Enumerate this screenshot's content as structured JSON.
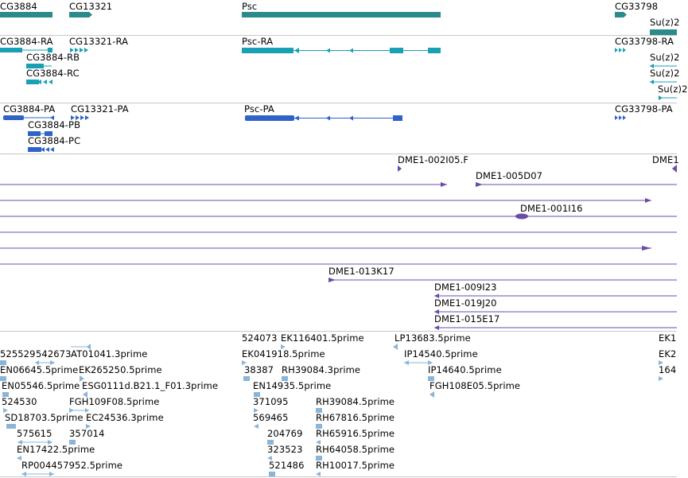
{
  "colors": {
    "gene": "#2b8a8a",
    "transcript": "#1aa0b4",
    "protein": "#2f63c8",
    "clone": "#6a4ca8",
    "est": "#8ab4d8",
    "divider": "#c8c8c8"
  },
  "tracks": {
    "genes": {
      "labels": [
        "CG3884",
        "CG13321",
        "Psc",
        "CG33798",
        "Su(z)2"
      ]
    },
    "transcripts": {
      "labels": [
        "CG3884-RA",
        "CG13321-RA",
        "CG3884-RB",
        "CG3884-RC",
        "Psc-RA",
        "CG33798-RA",
        "Su(z)2",
        "Su(z)2",
        "Su(z)2"
      ]
    },
    "proteins": {
      "labels": [
        "CG3884-PA",
        "CG13321-PA",
        "CG3884-PB",
        "CG3884-PC",
        "Psc-PA",
        "CG33798-PA"
      ]
    },
    "clones": {
      "labels": [
        "DME1-002I05.F",
        "DME1",
        "DME1-005D07",
        "DME1-001I16",
        "DME1-013K17",
        "DME1-009I23",
        "DME1-019J20",
        "DME1-015E17"
      ]
    },
    "ests": {
      "labels": [
        "525529",
        "542673",
        "AT01041.3prime",
        "EN06645.5prime",
        "EK265250.5prime",
        "EN05546.5prime",
        "ESG0111d.B21.1_F01.3prime",
        "524530",
        "FGH109F08.5prime",
        "SD18703.5prime",
        "EC24536.3prime",
        "575615",
        "357014",
        "EN17422.5prime",
        "RP004457952.5prime",
        "524073",
        "EK116401.5prime",
        "EK041918.5prime",
        "38387",
        "RH39084.3prime",
        "EN14935.5prime",
        "371095",
        "RH39084.5prime",
        "569465",
        "RH67816.5prime",
        "204769",
        "RH65916.5prime",
        "323523",
        "RH64058.5prime",
        "521486",
        "RH10017.5prime",
        "LP13683.5prime",
        "IP14540.5prime",
        "IP14640.5prime",
        "FGH108E05.5prime",
        "EK1",
        "EK2",
        "164"
      ]
    }
  }
}
